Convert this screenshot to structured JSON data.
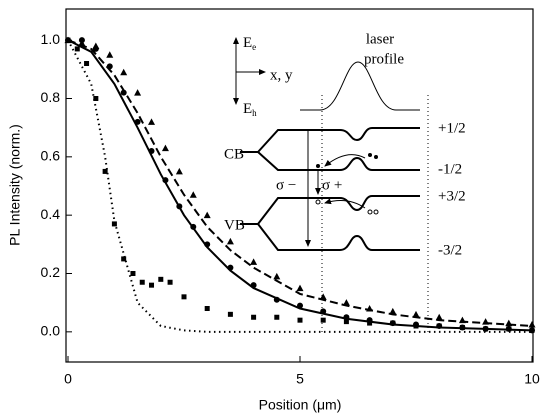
{
  "chart_data": {
    "type": "line",
    "xlabel": "Position (μm)",
    "ylabel": "PL Intensity (norm.)",
    "xlim": [
      0,
      10
    ],
    "ylim": [
      -0.1,
      1.1
    ],
    "xticks": [
      0,
      5,
      10
    ],
    "yticks": [
      {
        "value": 0,
        "label": "0.0"
      },
      0.2,
      0.4,
      0.6,
      0.8,
      {
        "value": 1,
        "label": "1.0"
      }
    ],
    "series": [
      {
        "marker": "triangle",
        "color": "#000000",
        "x": [
          0,
          0.3,
          0.6,
          0.9,
          1.2,
          1.5,
          1.8,
          2.1,
          2.4,
          2.7,
          3,
          3.5,
          4,
          4.5,
          5,
          5.5,
          6,
          6.5,
          7,
          7.5,
          8,
          8.5,
          9,
          9.5,
          10
        ],
        "values": [
          1.0,
          0.99,
          0.98,
          0.95,
          0.89,
          0.82,
          0.72,
          0.63,
          0.55,
          0.47,
          0.4,
          0.31,
          0.24,
          0.19,
          0.15,
          0.12,
          0.1,
          0.08,
          0.07,
          0.06,
          0.05,
          0.04,
          0.035,
          0.03,
          0.025
        ]
      },
      {
        "marker": "circle",
        "color": "#000000",
        "x": [
          0,
          0.3,
          0.6,
          0.9,
          1.2,
          1.5,
          1.8,
          2.1,
          2.4,
          2.7,
          3,
          3.5,
          4,
          4.5,
          5,
          5.5,
          6,
          6.5,
          7,
          7.5,
          8,
          8.5,
          9,
          9.5,
          10
        ],
        "values": [
          1.0,
          1.0,
          0.97,
          0.91,
          0.82,
          0.72,
          0.62,
          0.52,
          0.43,
          0.36,
          0.3,
          0.22,
          0.16,
          0.11,
          0.09,
          0.07,
          0.05,
          0.04,
          0.03,
          0.025,
          0.02,
          0.015,
          0.01,
          0.01,
          0.005
        ]
      },
      {
        "marker": "square",
        "color": "#000000",
        "x": [
          0,
          0.2,
          0.4,
          0.6,
          0.8,
          1.0,
          1.2,
          1.4,
          1.6,
          1.8,
          2.0,
          2.2,
          2.5,
          3,
          3.5,
          4,
          4.5,
          5,
          5.5,
          6,
          6.5,
          7,
          7.5,
          8,
          8.5,
          9,
          9.5,
          10
        ],
        "values": [
          1.0,
          0.97,
          0.92,
          0.8,
          0.55,
          0.37,
          0.25,
          0.2,
          0.17,
          0.16,
          0.18,
          0.17,
          0.12,
          0.08,
          0.06,
          0.05,
          0.05,
          0.04,
          0.04,
          0.035,
          0.03,
          0.03,
          0.02,
          0.02,
          0.015,
          0.01,
          0.01,
          0.005
        ]
      },
      {
        "line_style": "dashed",
        "color": "#000000",
        "x": [
          0,
          0.5,
          1,
          1.5,
          2,
          2.5,
          3,
          3.5,
          4,
          5,
          6,
          7,
          8,
          9,
          10
        ],
        "values": [
          1.0,
          0.97,
          0.88,
          0.75,
          0.6,
          0.47,
          0.36,
          0.28,
          0.22,
          0.13,
          0.09,
          0.06,
          0.04,
          0.03,
          0.02
        ]
      },
      {
        "line_style": "solid",
        "color": "#000000",
        "x": [
          0,
          0.5,
          1,
          1.5,
          2,
          2.5,
          3,
          3.5,
          4,
          5,
          6,
          7,
          8,
          9,
          10
        ],
        "values": [
          1.0,
          0.96,
          0.85,
          0.7,
          0.54,
          0.4,
          0.29,
          0.21,
          0.15,
          0.08,
          0.045,
          0.025,
          0.015,
          0.01,
          0.005
        ]
      },
      {
        "line_style": "dotted",
        "color": "#000000",
        "x": [
          0,
          0.5,
          0.8,
          1,
          1.5,
          2,
          2.5,
          3,
          4,
          5,
          6,
          7,
          8,
          9,
          10
        ],
        "values": [
          1.0,
          0.85,
          0.6,
          0.38,
          0.1,
          0.02,
          0.005,
          0,
          0,
          0,
          0,
          0,
          0,
          0,
          0
        ]
      }
    ],
    "inset": {
      "e_e": "E",
      "e_e_sub": "e",
      "xy": "x, y",
      "e_h": "E",
      "e_h_sub": "h",
      "laser": "laser",
      "profile": "profile",
      "cb": "CB",
      "vb": "VB",
      "cb_up": "+1/2",
      "cb_down": "-1/2",
      "vb_up": "+3/2",
      "vb_down": "-3/2",
      "sigma_minus": "σ −",
      "sigma_plus": "σ +"
    }
  }
}
